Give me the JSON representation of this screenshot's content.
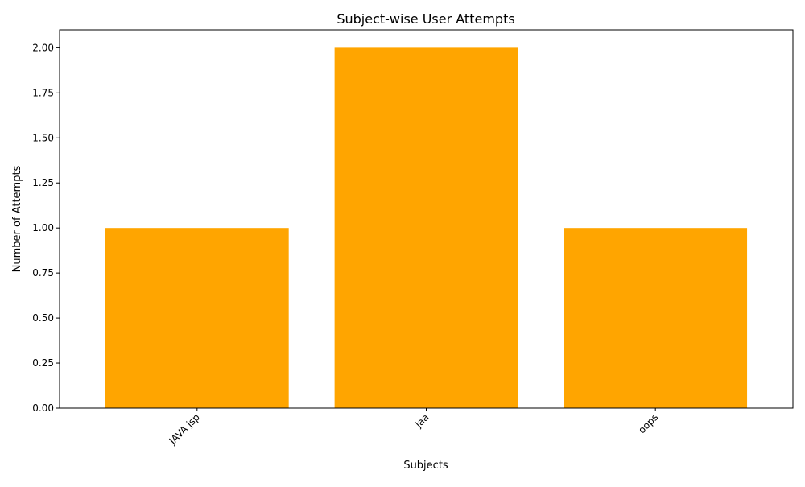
{
  "chart_data": {
    "type": "bar",
    "title": "Subject-wise User Attempts",
    "xlabel": "Subjects",
    "ylabel": "Number of Attempts",
    "categories": [
      "JAVA jsp",
      "jaa",
      "oops"
    ],
    "values": [
      1,
      2,
      1
    ],
    "ylim": [
      0,
      2.1
    ],
    "yticks": [
      "0.00",
      "0.25",
      "0.50",
      "0.75",
      "1.00",
      "1.25",
      "1.50",
      "1.75",
      "2.00"
    ],
    "bar_color": "#FFA500",
    "grid": false,
    "legend": "none"
  }
}
